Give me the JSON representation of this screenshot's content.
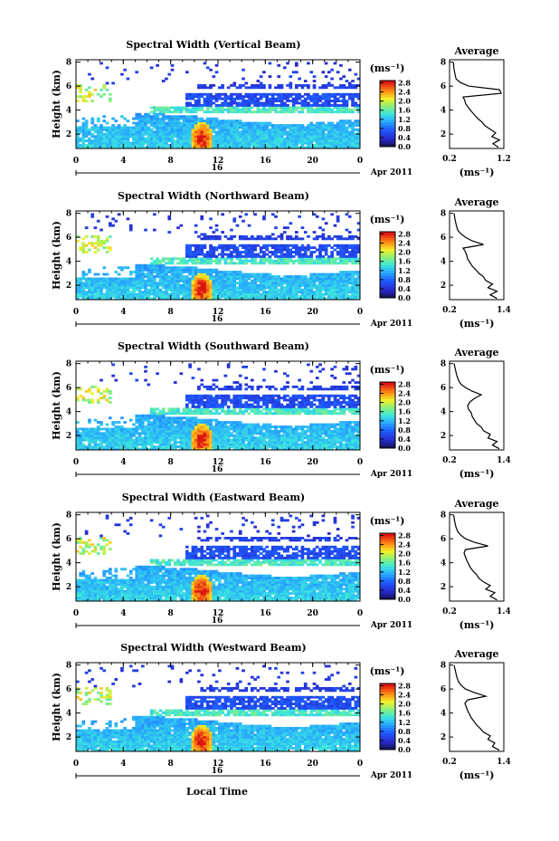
{
  "figure": {
    "xlabel": "Local Time",
    "date_label": "Apr 2011",
    "day_label": "16",
    "avg_xunit": "(ms⁻¹)",
    "cbar_unit": "(ms⁻¹)",
    "avg_title": "Average"
  },
  "chart_data": [
    {
      "type": "heatmap",
      "title": "Spectral Width (Vertical Beam)",
      "ylabel": "Height (km)",
      "xlabel": "Local Time",
      "x_ticks": [
        "0",
        "4",
        "8",
        "12",
        "16",
        "20",
        "0"
      ],
      "y_ticks": [
        "2",
        "4",
        "6",
        "8"
      ],
      "xlim": [
        0,
        24
      ],
      "ylim": [
        0.8,
        8.2
      ],
      "colorbar": {
        "unit": "(ms⁻¹)",
        "ticks": [
          "0.0",
          "0.4",
          "0.8",
          "1.2",
          "1.6",
          "2.0",
          "2.4",
          "2.8"
        ],
        "range": [
          0,
          2.9
        ]
      },
      "average_profile": {
        "title": "Average",
        "xlabel": "(ms⁻¹)",
        "x_ticks": [
          "0.2",
          "1.2"
        ],
        "xlim": [
          0.2,
          1.2
        ],
        "y_ticks": [
          "2",
          "4",
          "6",
          "8"
        ],
        "ylim": [
          0.8,
          8.2
        ],
        "height_km": [
          0.9,
          1.2,
          1.5,
          1.8,
          2.1,
          2.4,
          2.7,
          3.0,
          3.3,
          3.6,
          3.9,
          4.2,
          4.5,
          4.8,
          5.1,
          5.4,
          5.7,
          6.0,
          6.3,
          6.6,
          7.0,
          7.5,
          8.0
        ],
        "width": [
          1.1,
          1.0,
          1.12,
          0.98,
          1.05,
          0.95,
          0.85,
          0.8,
          0.72,
          0.66,
          0.6,
          0.55,
          0.5,
          0.48,
          0.45,
          1.15,
          1.12,
          0.55,
          0.4,
          0.32,
          0.3,
          0.28,
          0.27
        ]
      }
    },
    {
      "type": "heatmap",
      "title": "Spectral Width (Northward Beam)",
      "ylabel": "Height (km)",
      "xlabel": "Local Time",
      "x_ticks": [
        "0",
        "4",
        "8",
        "12",
        "16",
        "20",
        "0"
      ],
      "y_ticks": [
        "2",
        "4",
        "6",
        "8"
      ],
      "xlim": [
        0,
        24
      ],
      "ylim": [
        0.8,
        8.2
      ],
      "colorbar": {
        "unit": "(ms⁻¹)",
        "ticks": [
          "0.0",
          "0.4",
          "0.8",
          "1.2",
          "1.6",
          "2.0",
          "2.4",
          "2.8"
        ],
        "range": [
          0,
          2.9
        ]
      },
      "average_profile": {
        "title": "Average",
        "xlabel": "(ms⁻¹)",
        "x_ticks": [
          "0.2",
          "1.4"
        ],
        "xlim": [
          0.2,
          1.4
        ],
        "y_ticks": [
          "2",
          "4",
          "6",
          "8"
        ],
        "ylim": [
          0.8,
          8.2
        ],
        "height_km": [
          0.9,
          1.2,
          1.5,
          1.8,
          2.1,
          2.4,
          2.7,
          3.0,
          3.3,
          3.6,
          3.9,
          4.2,
          4.5,
          4.8,
          5.1,
          5.4,
          5.7,
          6.0,
          6.3,
          6.6,
          7.0,
          7.5,
          8.0
        ],
        "width": [
          1.25,
          1.1,
          1.25,
          1.05,
          1.15,
          1.0,
          0.95,
          0.85,
          0.78,
          0.7,
          0.65,
          0.6,
          0.58,
          0.55,
          0.5,
          0.95,
          0.7,
          0.55,
          0.45,
          0.38,
          0.35,
          0.32,
          0.3
        ]
      }
    },
    {
      "type": "heatmap",
      "title": "Spectral Width (Southward Beam)",
      "ylabel": "Height (km)",
      "xlabel": "Local Time",
      "x_ticks": [
        "0",
        "4",
        "8",
        "12",
        "16",
        "20",
        "0"
      ],
      "y_ticks": [
        "2",
        "4",
        "6",
        "8"
      ],
      "xlim": [
        0,
        24
      ],
      "ylim": [
        0.8,
        8.2
      ],
      "colorbar": {
        "unit": "(ms⁻¹)",
        "ticks": [
          "0.0",
          "0.4",
          "0.8",
          "1.2",
          "1.6",
          "2.0",
          "2.4",
          "2.8"
        ],
        "range": [
          0,
          2.9
        ]
      },
      "average_profile": {
        "title": "Average",
        "xlabel": "(ms⁻¹)",
        "x_ticks": [
          "0.2",
          "1.4"
        ],
        "xlim": [
          0.2,
          1.4
        ],
        "y_ticks": [
          "2",
          "4",
          "6",
          "8"
        ],
        "ylim": [
          0.8,
          8.2
        ],
        "height_km": [
          0.9,
          1.2,
          1.5,
          1.8,
          2.1,
          2.4,
          2.7,
          3.0,
          3.3,
          3.6,
          3.9,
          4.2,
          4.5,
          4.8,
          5.1,
          5.4,
          5.7,
          6.0,
          6.3,
          6.6,
          7.0,
          7.5,
          8.0
        ],
        "width": [
          1.3,
          1.15,
          1.25,
          1.05,
          1.1,
          0.95,
          0.9,
          0.8,
          0.75,
          0.7,
          0.68,
          0.62,
          0.6,
          0.65,
          0.75,
          0.9,
          0.7,
          0.55,
          0.45,
          0.4,
          0.36,
          0.33,
          0.3
        ]
      }
    },
    {
      "type": "heatmap",
      "title": "Spectral Width (Eastward Beam)",
      "ylabel": "Height (km)",
      "xlabel": "Local Time",
      "x_ticks": [
        "0",
        "4",
        "8",
        "12",
        "16",
        "20",
        "0"
      ],
      "y_ticks": [
        "2",
        "4",
        "6",
        "8"
      ],
      "xlim": [
        0,
        24
      ],
      "ylim": [
        0.8,
        8.2
      ],
      "colorbar": {
        "unit": "(ms⁻¹)",
        "ticks": [
          "0.0",
          "0.4",
          "0.8",
          "1.2",
          "1.6",
          "2.0",
          "2.4",
          "2.8"
        ],
        "range": [
          0,
          2.9
        ]
      },
      "average_profile": {
        "title": "Average",
        "xlabel": "(ms⁻¹)",
        "x_ticks": [
          "0.2",
          "1.4"
        ],
        "xlim": [
          0.2,
          1.4
        ],
        "y_ticks": [
          "2",
          "4",
          "6",
          "8"
        ],
        "ylim": [
          0.8,
          8.2
        ],
        "height_km": [
          0.9,
          1.2,
          1.5,
          1.8,
          2.1,
          2.4,
          2.7,
          3.0,
          3.3,
          3.6,
          3.9,
          4.2,
          4.5,
          4.8,
          5.1,
          5.4,
          5.7,
          6.0,
          6.3,
          6.6,
          7.0,
          7.5,
          8.0
        ],
        "width": [
          1.25,
          1.1,
          1.2,
          1.0,
          1.1,
          0.95,
          0.85,
          0.8,
          0.72,
          0.66,
          0.62,
          0.58,
          0.55,
          0.52,
          0.55,
          1.05,
          0.75,
          0.55,
          0.45,
          0.38,
          0.34,
          0.31,
          0.29
        ]
      }
    },
    {
      "type": "heatmap",
      "title": "Spectral Width (Westward Beam)",
      "ylabel": "Height (km)",
      "xlabel": "Local Time",
      "x_ticks": [
        "0",
        "4",
        "8",
        "12",
        "16",
        "20",
        "0"
      ],
      "y_ticks": [
        "2",
        "4",
        "6",
        "8"
      ],
      "xlim": [
        0,
        24
      ],
      "ylim": [
        0.8,
        8.2
      ],
      "colorbar": {
        "unit": "(ms⁻¹)",
        "ticks": [
          "0.0",
          "0.4",
          "0.8",
          "1.2",
          "1.6",
          "2.0",
          "2.4",
          "2.8"
        ],
        "range": [
          0,
          2.9
        ]
      },
      "average_profile": {
        "title": "Average",
        "xlabel": "(ms⁻¹)",
        "x_ticks": [
          "0.2",
          "1.4"
        ],
        "xlim": [
          0.2,
          1.4
        ],
        "y_ticks": [
          "2",
          "4",
          "6",
          "8"
        ],
        "ylim": [
          0.8,
          8.2
        ],
        "height_km": [
          0.9,
          1.2,
          1.5,
          1.8,
          2.1,
          2.4,
          2.7,
          3.0,
          3.3,
          3.6,
          3.9,
          4.2,
          4.5,
          4.8,
          5.1,
          5.4,
          5.7,
          6.0,
          6.3,
          6.6,
          7.0,
          7.5,
          8.0
        ],
        "width": [
          1.3,
          1.15,
          1.2,
          1.05,
          1.1,
          0.95,
          0.88,
          0.8,
          0.74,
          0.68,
          0.64,
          0.6,
          0.57,
          0.54,
          0.6,
          1.0,
          0.75,
          0.55,
          0.46,
          0.4,
          0.36,
          0.33,
          0.3
        ]
      }
    }
  ]
}
